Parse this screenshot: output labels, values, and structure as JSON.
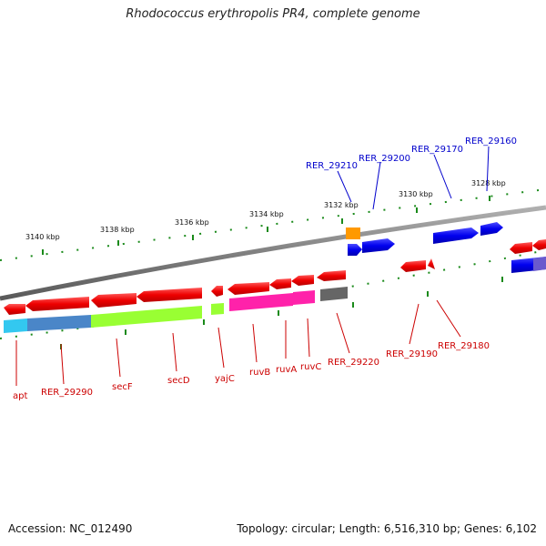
{
  "title": "Rhodococcus erythropolis PR4, complete genome",
  "footer": {
    "accession": "Accession: NC_012490",
    "summary": "Topology: circular; Length: 6,516,310 bp; Genes: 6,102"
  },
  "scale_ticks": [
    "3140 kbp",
    "3138 kbp",
    "3136 kbp",
    "3134 kbp",
    "3132 kbp",
    "3130 kbp",
    "3128 kbp"
  ],
  "genes_top": [
    "RER_29210",
    "RER_29200",
    "RER_29170",
    "RER_29160"
  ],
  "genes_bottom": [
    "apt",
    "RER_29290",
    "secF",
    "secD",
    "yajC",
    "ruvB",
    "ruvA",
    "ruvC",
    "RER_29220",
    "RER_29190",
    "RER_29180"
  ],
  "colors": {
    "forward_label": "#0000cc",
    "reverse_label": "#cc0000",
    "forward_gene": "#0000ff",
    "reverse_gene": "#ff0000",
    "backbone": "#808080"
  }
}
